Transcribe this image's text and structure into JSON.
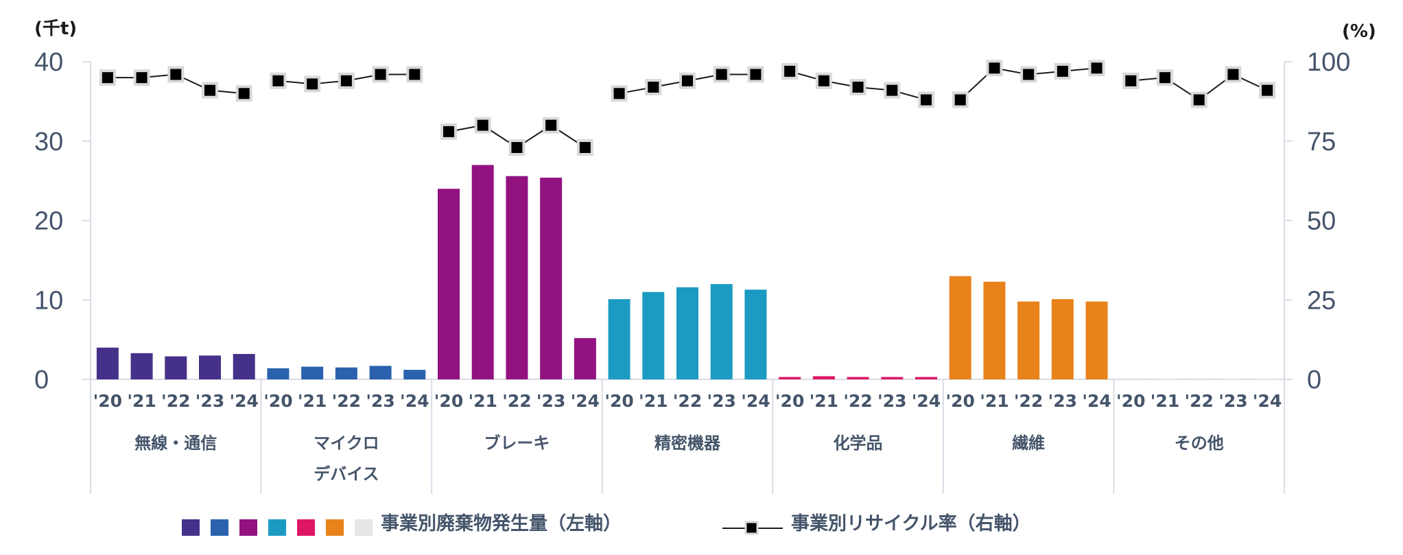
{
  "chart_data": {
    "type": "bar",
    "left_axis": {
      "unit": "(千t)",
      "ylim": [
        0,
        40
      ],
      "ticks": [
        "0",
        "10",
        "20",
        "30",
        "40"
      ]
    },
    "right_axis": {
      "unit": "(%)",
      "ylim": [
        0,
        100
      ],
      "ticks": [
        "0",
        "25",
        "50",
        "75",
        "100"
      ]
    },
    "years": [
      "'20",
      "'21",
      "'22",
      "'23",
      "'24"
    ],
    "groups": [
      {
        "label": [
          "無線・通信"
        ],
        "color": "#46318a",
        "waste": [
          4.0,
          3.3,
          2.9,
          3.0,
          3.2
        ],
        "recycle": [
          95,
          95,
          96,
          91,
          90
        ]
      },
      {
        "label": [
          "マイクロ",
          "デバイス"
        ],
        "color": "#2a62ad",
        "waste": [
          1.4,
          1.6,
          1.5,
          1.7,
          1.2
        ],
        "recycle": [
          94,
          93,
          94,
          96,
          96
        ]
      },
      {
        "label": [
          "ブレーキ"
        ],
        "color": "#921380",
        "waste": [
          24.0,
          27.0,
          25.6,
          25.4,
          5.2
        ],
        "recycle": [
          78,
          80,
          73,
          80,
          73
        ]
      },
      {
        "label": [
          "精密機器"
        ],
        "color": "#1b9bc2",
        "waste": [
          10.1,
          11.0,
          11.6,
          12.0,
          11.3
        ],
        "recycle": [
          90,
          92,
          94,
          96,
          96
        ]
      },
      {
        "label": [
          "化学品"
        ],
        "color": "#de1765",
        "waste": [
          0.3,
          0.4,
          0.3,
          0.3,
          0.3
        ],
        "recycle": [
          97,
          94,
          92,
          91,
          88
        ]
      },
      {
        "label": [
          "繊維"
        ],
        "color": "#e8821a",
        "waste": [
          13.0,
          12.3,
          9.8,
          10.1,
          9.8
        ],
        "recycle": [
          88,
          98,
          96,
          97,
          98
        ]
      },
      {
        "label": [
          "その他"
        ],
        "color": "#e6e6e6",
        "waste": [
          0.15,
          0.1,
          0.15,
          0.1,
          0.1
        ],
        "recycle": [
          94,
          95,
          88,
          96,
          91
        ]
      }
    ],
    "legend": {
      "bar_label": "事業別廃棄物発生量（左軸）",
      "line_label": "事業別リサイクル率（右軸）"
    },
    "gridlines": false
  }
}
